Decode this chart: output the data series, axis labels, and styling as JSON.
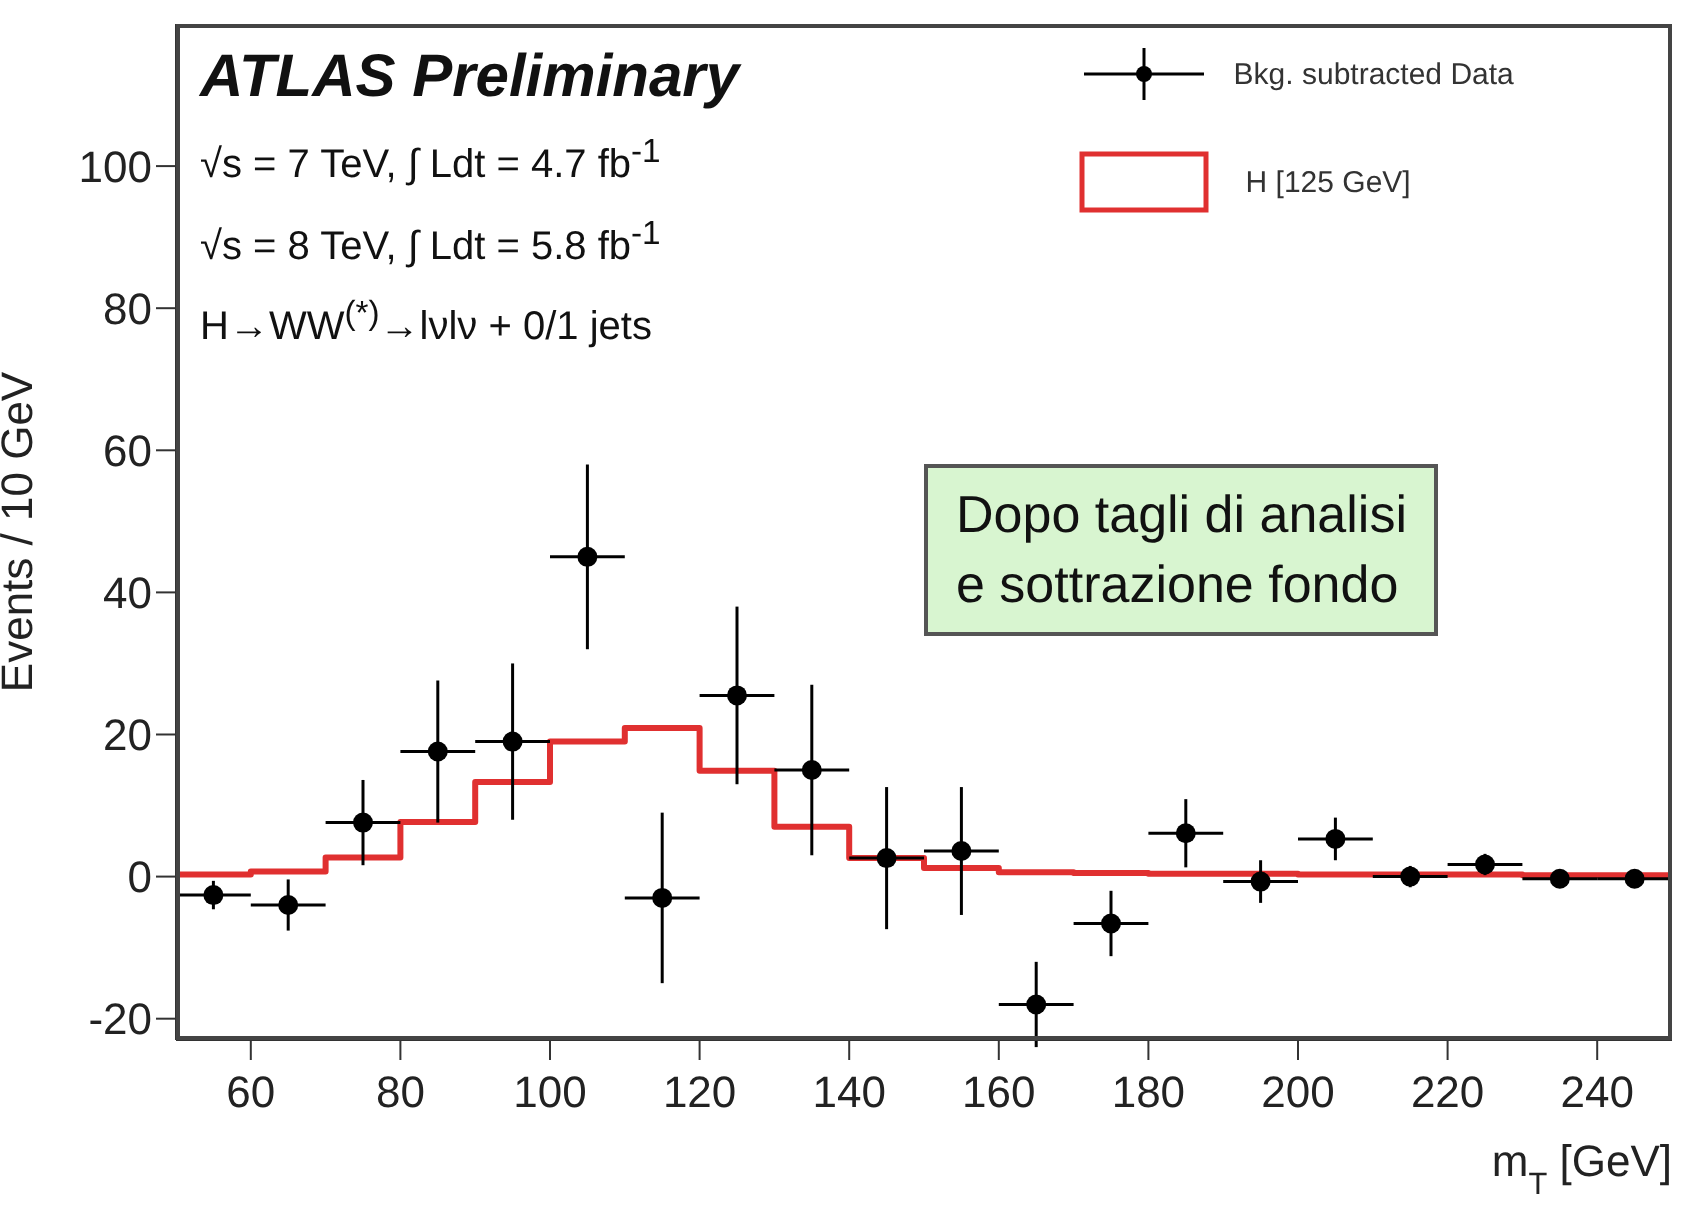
{
  "chart_data": {
    "type": "step",
    "xlabel": "m$_{T}$ [GeV]",
    "ylabel": "Events / 10 GeV",
    "xlim": [
      50,
      250
    ],
    "ylim": [
      -23,
      120
    ],
    "xticks": [
      60,
      80,
      100,
      120,
      140,
      160,
      180,
      200,
      220,
      240
    ],
    "yticks": [
      -20,
      0,
      20,
      40,
      60,
      80,
      100
    ],
    "legend": "top right",
    "grid": false,
    "series": [
      {
        "name": "Bkg. subtracted Data",
        "type": "scatter",
        "color": "#000000",
        "marker": "circle",
        "x": [
          55,
          65,
          75,
          85,
          95,
          105,
          115,
          125,
          135,
          145,
          155,
          165,
          175,
          185,
          195,
          205,
          215,
          225,
          235,
          245
        ],
        "values": [
          -2.6,
          -4,
          7.6,
          17.6,
          19,
          45,
          -3,
          25.5,
          15,
          2.6,
          3.6,
          -18,
          -6.6,
          6.1,
          -0.7,
          5.3,
          0,
          1.7,
          -0.3,
          -0.3
        ],
        "errors": [
          2,
          3.6,
          6,
          10,
          11,
          13,
          12,
          12.5,
          12,
          10,
          9,
          6,
          4.6,
          4.8,
          3,
          3,
          1.5,
          1.5,
          1.2,
          1.2
        ],
        "xerrors": [
          5,
          5,
          5,
          5,
          5,
          5,
          5,
          5,
          5,
          5,
          5,
          5,
          5,
          5,
          5,
          5,
          5,
          5,
          5,
          5
        ]
      },
      {
        "name": "H [125 GeV]",
        "color": "#e03030",
        "x": [
          50,
          60,
          70,
          80,
          90,
          100,
          110,
          120,
          130,
          140,
          150,
          160,
          170,
          180,
          190,
          200,
          210,
          220,
          230,
          240,
          250
        ],
        "values": [
          0.3,
          0.7,
          2.7,
          7.7,
          13.3,
          19,
          20.9,
          14.9,
          7,
          2.6,
          1.2,
          0.6,
          0.5,
          0.4,
          0.4,
          0.3,
          0.3,
          0.3,
          0.2,
          0.2,
          0.2
        ]
      }
    ],
    "annotations": [
      "ATLAS Preliminary",
      "√s = 7 TeV, ∫ Ldt = 4.7 fb$^{-1}$",
      "√s = 8 TeV, ∫ Ldt = 5.8 fb$^{-1}$",
      "H→WW$^{(*)}$→lνlν + 0/1 jets",
      "Dopo tagli di analisi\ne sottrazione fondo"
    ]
  }
}
